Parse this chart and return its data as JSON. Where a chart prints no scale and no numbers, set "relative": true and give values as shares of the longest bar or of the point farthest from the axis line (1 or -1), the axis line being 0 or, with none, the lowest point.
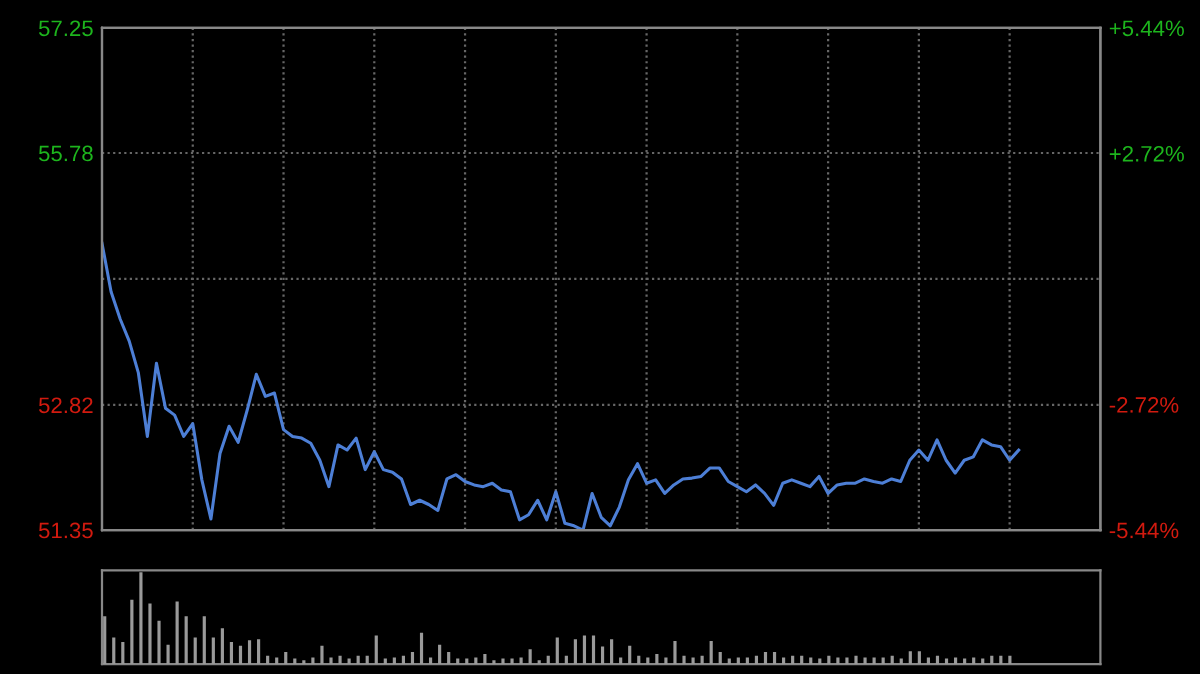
{
  "chart_data": [
    {
      "type": "line",
      "color": "#4d7fd6",
      "categories": [
        null,
        null,
        null,
        null,
        null,
        null,
        null,
        null,
        null,
        null,
        null,
        null,
        null,
        null,
        null,
        null,
        null,
        null,
        null,
        null,
        null,
        null,
        null,
        null,
        null,
        null,
        null,
        null,
        null,
        null,
        null,
        null,
        null,
        null,
        null,
        null,
        null,
        null,
        null,
        null,
        null,
        null,
        null,
        null,
        null,
        null,
        null,
        null,
        null,
        null,
        null,
        null,
        null,
        null,
        null,
        null,
        null,
        null,
        null,
        null,
        null,
        null,
        null,
        null,
        null,
        null,
        null,
        null,
        null,
        null,
        null,
        null,
        null,
        null,
        null,
        null,
        null,
        null,
        null,
        null,
        null,
        null,
        null,
        null,
        null,
        null,
        null,
        null,
        null,
        null,
        null,
        null,
        null,
        null,
        null,
        null,
        null,
        null,
        null,
        null,
        null,
        null,
        null,
        null,
        null,
        null,
        null,
        null,
        null,
        null,
        null
      ],
      "values": [
        54.72,
        54.15,
        53.83,
        53.57,
        53.2,
        52.45,
        53.31,
        52.78,
        52.7,
        52.45,
        52.6,
        51.94,
        51.48,
        52.25,
        52.57,
        52.38,
        52.76,
        53.18,
        52.92,
        52.96,
        52.53,
        52.45,
        52.43,
        52.37,
        52.17,
        51.86,
        52.35,
        52.29,
        52.43,
        52.06,
        52.27,
        52.06,
        52.03,
        51.95,
        51.65,
        51.7,
        51.65,
        51.58,
        51.95,
        52.0,
        51.92,
        51.88,
        51.86,
        51.9,
        51.82,
        51.8,
        51.47,
        51.53,
        51.7,
        51.47,
        51.8,
        51.43,
        51.4,
        51.35,
        51.78,
        51.5,
        51.4,
        51.62,
        51.94,
        52.13,
        51.9,
        51.94,
        51.78,
        51.88,
        51.95,
        51.96,
        51.98,
        52.08,
        52.08,
        51.92,
        51.86,
        51.8,
        51.88,
        51.78,
        51.64,
        51.9,
        51.94,
        51.9,
        51.86,
        51.98,
        51.78,
        51.88,
        51.9,
        51.9,
        51.95,
        51.92,
        51.9,
        51.95,
        51.92,
        52.17,
        52.29,
        52.17,
        52.41,
        52.17,
        52.02,
        52.17,
        52.21,
        52.41,
        52.35,
        52.33,
        52.17,
        52.29,
        null,
        null,
        null,
        null,
        null,
        null,
        null,
        null,
        null
      ],
      "ylim": [
        51.35,
        57.25
      ],
      "yticks": [
        51.35,
        52.82,
        {
          "value": 54.3,
          "label": null
        },
        55.78,
        57.25
      ],
      "y2lim": [
        -5.44,
        5.44
      ],
      "y2ticks": [
        {
          "value": -5.44,
          "label": "-5.44%"
        },
        {
          "value": -2.72,
          "label": "-2.72%"
        },
        {
          "value": 2.72,
          "label": "+2.72%"
        },
        {
          "value": 5.44,
          "label": "+5.44%"
        }
      ],
      "grid": true,
      "tick_labels": "y",
      "line_style": "solid",
      "marker": "none"
    },
    {
      "type": "bar",
      "color": "#9a9a9a",
      "relative": true,
      "tick_labels": false,
      "categories": [
        null,
        null,
        null,
        null,
        null,
        null,
        null,
        null,
        null,
        null,
        null,
        null,
        null,
        null,
        null,
        null,
        null,
        null,
        null,
        null,
        null,
        null,
        null,
        null,
        null,
        null,
        null,
        null,
        null,
        null,
        null,
        null,
        null,
        null,
        null,
        null,
        null,
        null,
        null,
        null,
        null,
        null,
        null,
        null,
        null,
        null,
        null,
        null,
        null,
        null,
        null,
        null,
        null,
        null,
        null,
        null,
        null,
        null,
        null,
        null,
        null,
        null,
        null,
        null,
        null,
        null,
        null,
        null,
        null,
        null,
        null,
        null,
        null,
        null,
        null,
        null,
        null,
        null,
        null,
        null,
        null,
        null,
        null,
        null,
        null,
        null,
        null,
        null,
        null,
        null,
        null,
        null,
        null,
        null,
        null,
        null,
        null,
        null,
        null,
        null,
        null,
        null,
        null,
        null,
        null,
        null,
        null,
        null,
        null,
        null,
        null
      ],
      "values": [
        0.52,
        0.29,
        0.24,
        0.7,
        1,
        0.66,
        0.47,
        0.21,
        0.68,
        0.52,
        0.29,
        0.52,
        0.29,
        0.39,
        0.24,
        0.2,
        0.26,
        0.27,
        0.09,
        0.07,
        0.13,
        0.06,
        0.04,
        0.07,
        0.2,
        0.07,
        0.09,
        0.06,
        0.09,
        0.09,
        0.31,
        0.06,
        0.07,
        0.09,
        0.13,
        0.34,
        0.07,
        0.21,
        0.13,
        0.06,
        0.06,
        0.07,
        0.11,
        0.04,
        0.06,
        0.06,
        0.07,
        0.16,
        0.04,
        0.09,
        0.29,
        0.09,
        0.27,
        0.31,
        0.31,
        0.19,
        0.27,
        0.07,
        0.2,
        0.09,
        0.07,
        0.11,
        0.07,
        0.25,
        0.09,
        0.07,
        0.09,
        0.25,
        0.13,
        0.06,
        0.07,
        0.07,
        0.09,
        0.13,
        0.13,
        0.07,
        0.09,
        0.09,
        0.07,
        0.06,
        0.09,
        0.07,
        0.07,
        0.09,
        0.07,
        0.07,
        0.07,
        0.09,
        0.06,
        0.14,
        0.14,
        0.07,
        0.09,
        0.06,
        0.07,
        0.06,
        0.07,
        0.06,
        0.09,
        0.09,
        0.09,
        null,
        null,
        null,
        null,
        null,
        null,
        null,
        null,
        null,
        null
      ]
    }
  ]
}
